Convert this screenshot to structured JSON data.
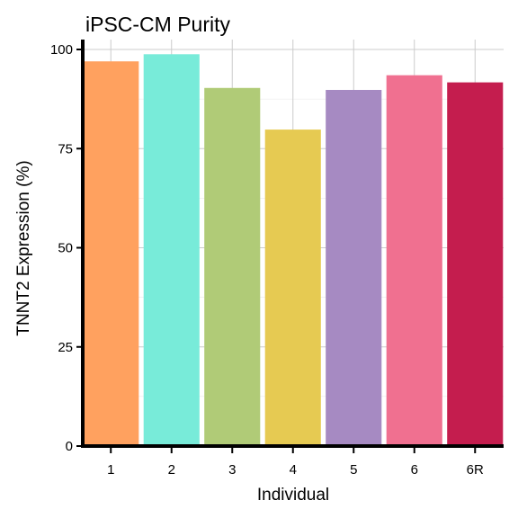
{
  "chart_data": {
    "type": "bar",
    "title": "iPSC-CM Purity",
    "xlabel": "Individual",
    "ylabel": "TNNT2 Expression (%)",
    "categories": [
      "1",
      "2",
      "3",
      "4",
      "5",
      "6",
      "6R"
    ],
    "values": [
      97,
      98.8,
      90.3,
      79.8,
      89.8,
      93.5,
      91.7
    ],
    "colors": [
      "#FFA15F",
      "#78EBD9",
      "#B0CB77",
      "#E6CA52",
      "#A68AC2",
      "#F07090",
      "#C41D4E"
    ],
    "ylim": [
      0,
      100
    ],
    "yticks": [
      "0",
      "25",
      "50",
      "75",
      "100"
    ],
    "grid": true,
    "legend": "none"
  }
}
